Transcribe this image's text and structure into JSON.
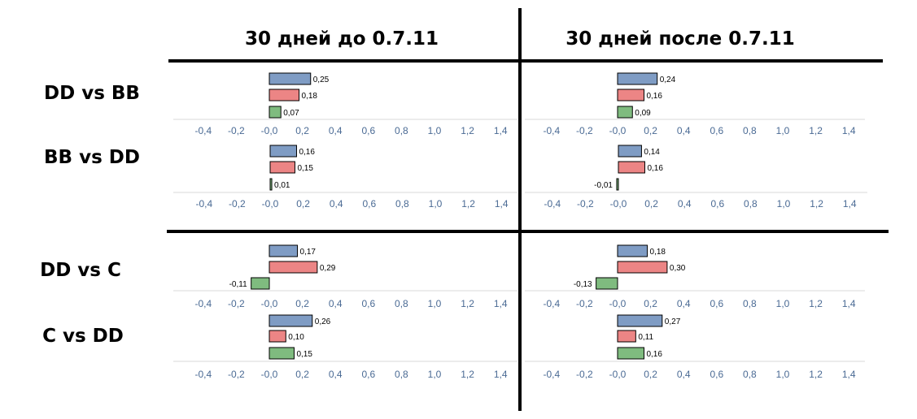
{
  "column_titles": [
    "30 дней до 0.7.11",
    "30 дней после 0.7.11"
  ],
  "row_labels": [
    "DD vs BB",
    "BB vs DD",
    "DD vs C",
    "C vs DD"
  ],
  "tick_labels": [
    "-0,4",
    "-0,2",
    "-0,0",
    "0,2",
    "0,4",
    "0,6",
    "0,8",
    "1,0",
    "1,2",
    "1,4"
  ],
  "colors": {
    "series1": "#7f9cc4",
    "series2": "#ec8585",
    "series3": "#7fbb7f",
    "axis": "#d9d9d9",
    "divider": "#000000"
  },
  "chart_data": [
    {
      "type": "bar",
      "orientation": "horizontal",
      "title": "30 дней до 0.7.11",
      "row": "DD vs BB",
      "values": [
        0.25,
        0.18,
        0.07
      ],
      "value_labels": [
        "0,25",
        "0,18",
        "0,07"
      ],
      "xlim": [
        -0.4,
        1.4
      ],
      "grid": false
    },
    {
      "type": "bar",
      "orientation": "horizontal",
      "title": "30 дней после 0.7.11",
      "row": "DD vs BB",
      "values": [
        0.24,
        0.16,
        0.09
      ],
      "value_labels": [
        "0,24",
        "0,16",
        "0,09"
      ],
      "xlim": [
        -0.4,
        1.4
      ],
      "grid": false
    },
    {
      "type": "bar",
      "orientation": "horizontal",
      "title": "30 дней до 0.7.11",
      "row": "BB vs DD",
      "values": [
        0.16,
        0.15,
        0.01
      ],
      "value_labels": [
        "0,16",
        "0,15",
        "0,01"
      ],
      "xlim": [
        -0.4,
        1.4
      ],
      "grid": false
    },
    {
      "type": "bar",
      "orientation": "horizontal",
      "title": "30 дней после 0.7.11",
      "row": "BB vs DD",
      "values": [
        0.14,
        0.16,
        -0.01
      ],
      "value_labels": [
        "0,14",
        "0,16",
        "-0,01"
      ],
      "xlim": [
        -0.4,
        1.4
      ],
      "grid": false
    },
    {
      "type": "bar",
      "orientation": "horizontal",
      "title": "30 дней до 0.7.11",
      "row": "DD vs C",
      "values": [
        0.17,
        0.29,
        -0.11
      ],
      "value_labels": [
        "0,17",
        "0,29",
        "-0,11"
      ],
      "xlim": [
        -0.4,
        1.4
      ],
      "grid": false
    },
    {
      "type": "bar",
      "orientation": "horizontal",
      "title": "30 дней после 0.7.11",
      "row": "DD vs C",
      "values": [
        0.18,
        0.3,
        -0.13
      ],
      "value_labels": [
        "0,18",
        "0,30",
        "-0,13"
      ],
      "xlim": [
        -0.4,
        1.4
      ],
      "grid": false
    },
    {
      "type": "bar",
      "orientation": "horizontal",
      "title": "30 дней до 0.7.11",
      "row": "C vs DD",
      "values": [
        0.26,
        0.1,
        0.15
      ],
      "value_labels": [
        "0,26",
        "0,10",
        "0,15"
      ],
      "xlim": [
        -0.4,
        1.4
      ],
      "grid": false
    },
    {
      "type": "bar",
      "orientation": "horizontal",
      "title": "30 дней после 0.7.11",
      "row": "C vs DD",
      "values": [
        0.27,
        0.11,
        0.16
      ],
      "value_labels": [
        "0,27",
        "0,11",
        "0,16"
      ],
      "xlim": [
        -0.4,
        1.4
      ],
      "grid": false
    }
  ]
}
